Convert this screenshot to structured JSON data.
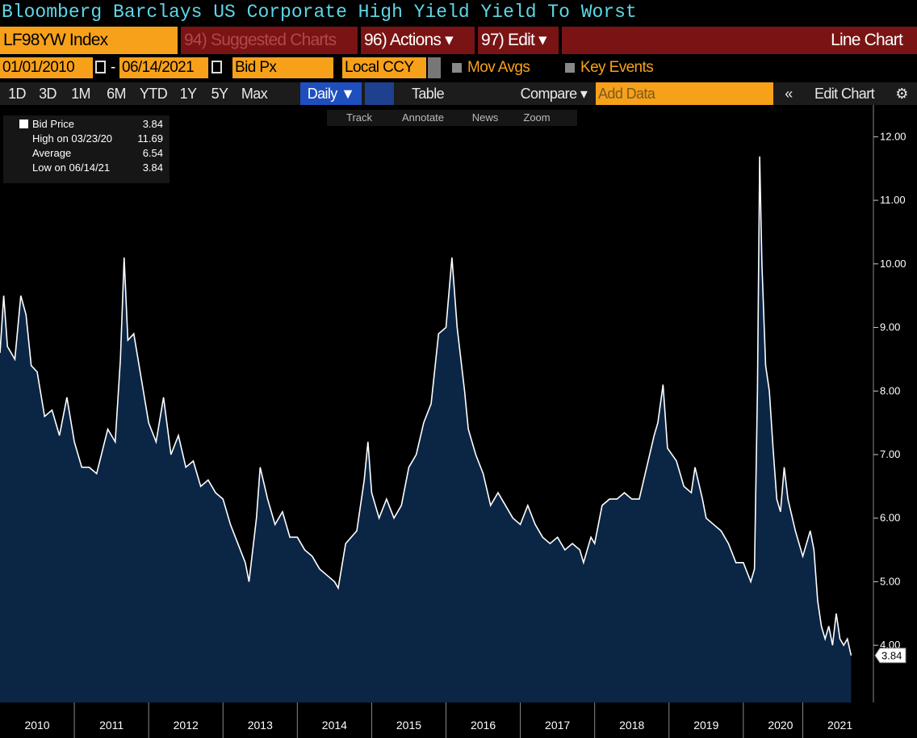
{
  "header": {
    "title": "Bloomberg Barclays US Corporate High Yield Yield To Worst"
  },
  "toolbar": {
    "ticker": "LF98YW Index",
    "suggested": "94) Suggested Charts",
    "actions": "96) Actions ▾",
    "edit": "97) Edit ▾",
    "chart_kind": "Line Chart"
  },
  "settings": {
    "start_date": "01/01/2010",
    "dash": "-",
    "end_date": "06/14/2021",
    "field": "Bid Px",
    "currency": "Local CCY",
    "mov_avgs": "Mov Avgs",
    "key_events": "Key Events"
  },
  "periods": [
    "1D",
    "3D",
    "1M",
    "6M",
    "YTD",
    "1Y",
    "5Y",
    "Max"
  ],
  "controls": {
    "frequency": "Daily ▼",
    "table": "Table",
    "compare": "Compare ▾",
    "add_data": "Add Data",
    "collapse": "«",
    "edit_chart": "Edit Chart",
    "settings": "⚙"
  },
  "tools": [
    "Track",
    "Annotate",
    "News",
    "Zoom"
  ],
  "chart_data": {
    "type": "area",
    "x": [
      2010.0,
      2010.05,
      2010.1,
      2010.2,
      2010.28,
      2010.35,
      2010.42,
      2010.5,
      2010.6,
      2010.7,
      2010.8,
      2010.9,
      2011.0,
      2011.1,
      2011.2,
      2011.3,
      2011.45,
      2011.55,
      2011.62,
      2011.67,
      2011.72,
      2011.8,
      2011.9,
      2012.0,
      2012.1,
      2012.2,
      2012.3,
      2012.4,
      2012.5,
      2012.6,
      2012.7,
      2012.8,
      2012.9,
      2013.0,
      2013.1,
      2013.2,
      2013.3,
      2013.35,
      2013.45,
      2013.5,
      2013.6,
      2013.7,
      2013.8,
      2013.9,
      2014.0,
      2014.1,
      2014.2,
      2014.3,
      2014.4,
      2014.5,
      2014.55,
      2014.65,
      2014.8,
      2014.9,
      2014.95,
      2015.0,
      2015.1,
      2015.2,
      2015.3,
      2015.4,
      2015.5,
      2015.6,
      2015.7,
      2015.8,
      2015.9,
      2016.0,
      2016.08,
      2016.15,
      2016.25,
      2016.3,
      2016.4,
      2016.5,
      2016.6,
      2016.7,
      2016.8,
      2016.9,
      2017.0,
      2017.1,
      2017.2,
      2017.3,
      2017.4,
      2017.5,
      2017.6,
      2017.7,
      2017.8,
      2017.85,
      2017.95,
      2018.0,
      2018.1,
      2018.2,
      2018.3,
      2018.4,
      2018.5,
      2018.6,
      2018.7,
      2018.8,
      2018.85,
      2018.92,
      2018.98,
      2019.1,
      2019.2,
      2019.3,
      2019.35,
      2019.45,
      2019.5,
      2019.6,
      2019.7,
      2019.8,
      2019.9,
      2020.0,
      2020.1,
      2020.15,
      2020.19,
      2020.22,
      2020.25,
      2020.3,
      2020.35,
      2020.4,
      2020.45,
      2020.5,
      2020.55,
      2020.6,
      2020.7,
      2020.8,
      2020.9,
      2020.95,
      2021.0,
      2021.05,
      2021.1,
      2021.15,
      2021.2,
      2021.25,
      2021.3,
      2021.35,
      2021.4,
      2021.45
    ],
    "series": [
      {
        "name": "Bid Price",
        "color": "#ffffff",
        "fill": "#0b2545",
        "values": [
          8.6,
          9.5,
          8.7,
          8.5,
          9.5,
          9.2,
          8.4,
          8.3,
          7.6,
          7.7,
          7.3,
          7.9,
          7.2,
          6.8,
          6.8,
          6.7,
          7.4,
          7.2,
          8.5,
          10.1,
          8.8,
          8.9,
          8.2,
          7.5,
          7.2,
          7.9,
          7.0,
          7.3,
          6.8,
          6.9,
          6.5,
          6.6,
          6.4,
          6.3,
          5.9,
          5.6,
          5.3,
          5.0,
          6.0,
          6.8,
          6.3,
          5.9,
          6.1,
          5.7,
          5.7,
          5.5,
          5.4,
          5.2,
          5.1,
          5.0,
          4.9,
          5.6,
          5.8,
          6.6,
          7.2,
          6.4,
          6.0,
          6.3,
          6.0,
          6.2,
          6.8,
          7.0,
          7.5,
          7.8,
          8.9,
          9.0,
          10.1,
          9.0,
          8.0,
          7.4,
          7.0,
          6.7,
          6.2,
          6.4,
          6.2,
          6.0,
          5.9,
          6.2,
          5.9,
          5.7,
          5.6,
          5.7,
          5.5,
          5.6,
          5.5,
          5.3,
          5.7,
          5.6,
          6.2,
          6.3,
          6.3,
          6.4,
          6.3,
          6.3,
          6.8,
          7.3,
          7.5,
          8.1,
          7.1,
          6.9,
          6.5,
          6.4,
          6.8,
          6.3,
          6.0,
          5.9,
          5.8,
          5.6,
          5.3,
          5.3,
          5.0,
          5.2,
          8.0,
          11.69,
          10.0,
          8.4,
          8.0,
          7.1,
          6.3,
          6.1,
          6.8,
          6.3,
          5.8,
          5.4,
          5.8,
          5.5,
          4.7,
          4.3,
          4.1,
          4.3,
          4.0,
          4.5,
          4.1,
          4.0,
          4.1,
          3.84
        ]
      }
    ],
    "last_value": 3.84,
    "legend_stats": [
      {
        "label": "High on 03/23/20",
        "value": 11.69
      },
      {
        "label": "Average",
        "value": 6.54
      },
      {
        "label": "Low on 06/14/21",
        "value": 3.84
      }
    ],
    "xlim": [
      2010,
      2021.75
    ],
    "xticks": [
      {
        "value": 2010.5,
        "label": "2010"
      },
      {
        "value": 2011.5,
        "label": "2011"
      },
      {
        "value": 2012.5,
        "label": "2012"
      },
      {
        "value": 2013.5,
        "label": "2013"
      },
      {
        "value": 2014.5,
        "label": "2014"
      },
      {
        "value": 2015.5,
        "label": "2015"
      },
      {
        "value": 2016.5,
        "label": "2016"
      },
      {
        "value": 2017.5,
        "label": "2017"
      },
      {
        "value": 2018.5,
        "label": "2018"
      },
      {
        "value": 2019.5,
        "label": "2019"
      },
      {
        "value": 2020.5,
        "label": "2020"
      },
      {
        "value": 2021.3,
        "label": "2021"
      }
    ],
    "ylim": [
      3.1,
      12.5
    ],
    "yticks": [
      {
        "value": 4,
        "label": "4.00"
      },
      {
        "value": 5,
        "label": "5.00"
      },
      {
        "value": 6,
        "label": "6.00"
      },
      {
        "value": 7,
        "label": "7.00"
      },
      {
        "value": 8,
        "label": "8.00"
      },
      {
        "value": 9,
        "label": "9.00"
      },
      {
        "value": 10,
        "label": "10.00"
      },
      {
        "value": 11,
        "label": "11.00"
      },
      {
        "value": 12,
        "label": "12.00"
      }
    ],
    "grid": false
  }
}
